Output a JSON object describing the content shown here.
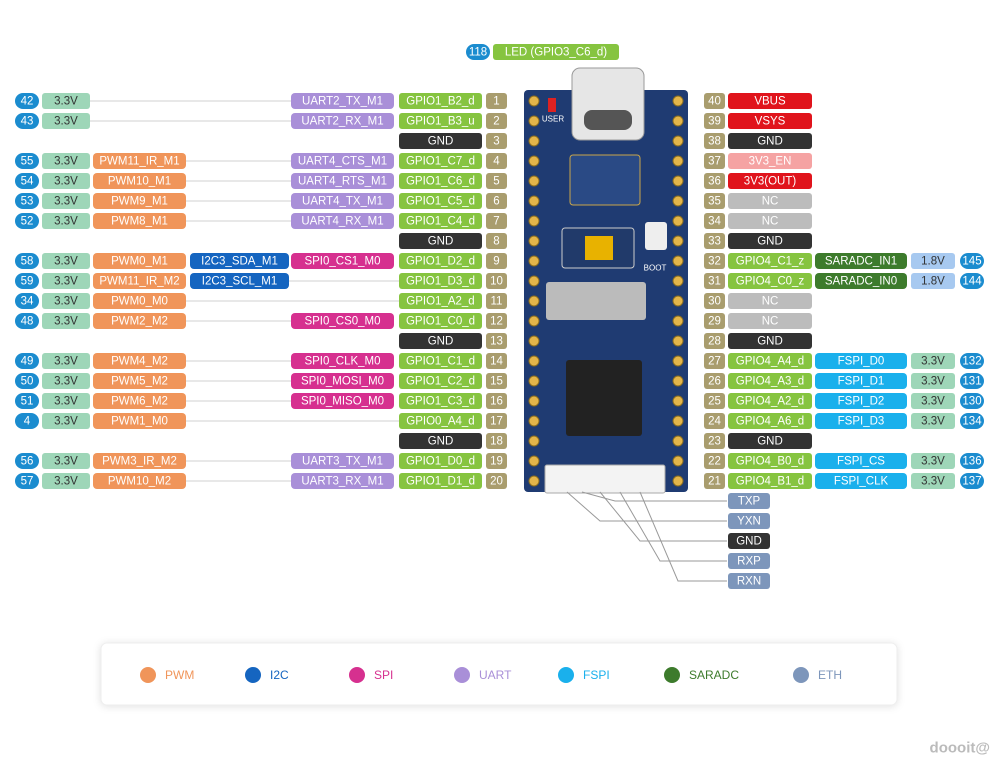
{
  "led": [
    {
      "text": 118,
      "color": "#1b8ccf"
    },
    {
      "text": "LED (GPIO3_C6_d)",
      "color": "#86c440"
    }
  ],
  "board": {
    "user": "USER",
    "boot": "BOOT"
  },
  "left_rows": [
    [
      {
        "text": 42,
        "color": "#1b8ccf"
      },
      {
        "text": "3.3V",
        "color": "#9ed6b8"
      },
      null,
      null,
      {
        "text": "UART2_TX_M1",
        "color": "#a98fd8"
      },
      {
        "text": "GPIO1_B2_d",
        "color": "#86c440"
      },
      {
        "text": 1,
        "color": "#a99d6e"
      }
    ],
    [
      {
        "text": 43,
        "color": "#1b8ccf"
      },
      {
        "text": "3.3V",
        "color": "#9ed6b8"
      },
      null,
      null,
      {
        "text": "UART2_RX_M1",
        "color": "#a98fd8"
      },
      {
        "text": "GPIO1_B3_u",
        "color": "#86c440"
      },
      {
        "text": 2,
        "color": "#a99d6e"
      }
    ],
    [
      null,
      null,
      null,
      null,
      null,
      {
        "text": "GND",
        "color": "#333333"
      },
      {
        "text": 3,
        "color": "#a99d6e"
      }
    ],
    [
      {
        "text": 55,
        "color": "#1b8ccf"
      },
      {
        "text": "3.3V",
        "color": "#9ed6b8"
      },
      {
        "text": "PWM11_IR_M1",
        "color": "#f0955a"
      },
      null,
      {
        "text": "UART4_CTS_M1",
        "color": "#a98fd8"
      },
      {
        "text": "GPIO1_C7_d",
        "color": "#86c440"
      },
      {
        "text": 4,
        "color": "#a99d6e"
      }
    ],
    [
      {
        "text": 54,
        "color": "#1b8ccf"
      },
      {
        "text": "3.3V",
        "color": "#9ed6b8"
      },
      {
        "text": "PWM10_M1",
        "color": "#f0955a"
      },
      null,
      {
        "text": "UART4_RTS_M1",
        "color": "#a98fd8"
      },
      {
        "text": "GPIO1_C6_d",
        "color": "#86c440"
      },
      {
        "text": 5,
        "color": "#a99d6e"
      }
    ],
    [
      {
        "text": 53,
        "color": "#1b8ccf"
      },
      {
        "text": "3.3V",
        "color": "#9ed6b8"
      },
      {
        "text": "PWM9_M1",
        "color": "#f0955a"
      },
      null,
      {
        "text": "UART4_TX_M1",
        "color": "#a98fd8"
      },
      {
        "text": "GPIO1_C5_d",
        "color": "#86c440"
      },
      {
        "text": 6,
        "color": "#a99d6e"
      }
    ],
    [
      {
        "text": 52,
        "color": "#1b8ccf"
      },
      {
        "text": "3.3V",
        "color": "#9ed6b8"
      },
      {
        "text": "PWM8_M1",
        "color": "#f0955a"
      },
      null,
      {
        "text": "UART4_RX_M1",
        "color": "#a98fd8"
      },
      {
        "text": "GPIO1_C4_d",
        "color": "#86c440"
      },
      {
        "text": 7,
        "color": "#a99d6e"
      }
    ],
    [
      null,
      null,
      null,
      null,
      null,
      {
        "text": "GND",
        "color": "#333333"
      },
      {
        "text": 8,
        "color": "#a99d6e"
      }
    ],
    [
      {
        "text": 58,
        "color": "#1b8ccf"
      },
      {
        "text": "3.3V",
        "color": "#9ed6b8"
      },
      {
        "text": "PWM0_M1",
        "color": "#f0955a"
      },
      {
        "text": "I2C3_SDA_M1",
        "color": "#1565c0"
      },
      {
        "text": "SPI0_CS1_M0",
        "color": "#d6308f"
      },
      {
        "text": "GPIO1_D2_d",
        "color": "#86c440"
      },
      {
        "text": 9,
        "color": "#a99d6e"
      }
    ],
    [
      {
        "text": 59,
        "color": "#1b8ccf"
      },
      {
        "text": "3.3V",
        "color": "#9ed6b8"
      },
      {
        "text": "PWM11_IR_M2",
        "color": "#f0955a"
      },
      {
        "text": "I2C3_SCL_M1",
        "color": "#1565c0"
      },
      null,
      {
        "text": "GPIO1_D3_d",
        "color": "#86c440"
      },
      {
        "text": 10,
        "color": "#a99d6e"
      }
    ],
    [
      {
        "text": 34,
        "color": "#1b8ccf"
      },
      {
        "text": "3.3V",
        "color": "#9ed6b8"
      },
      {
        "text": "PWM0_M0",
        "color": "#f0955a"
      },
      null,
      null,
      {
        "text": "GPIO1_A2_d",
        "color": "#86c440"
      },
      {
        "text": 11,
        "color": "#a99d6e"
      }
    ],
    [
      {
        "text": 48,
        "color": "#1b8ccf"
      },
      {
        "text": "3.3V",
        "color": "#9ed6b8"
      },
      {
        "text": "PWM2_M2",
        "color": "#f0955a"
      },
      null,
      {
        "text": "SPI0_CS0_M0",
        "color": "#d6308f"
      },
      {
        "text": "GPIO1_C0_d",
        "color": "#86c440"
      },
      {
        "text": 12,
        "color": "#a99d6e"
      }
    ],
    [
      null,
      null,
      null,
      null,
      null,
      {
        "text": "GND",
        "color": "#333333"
      },
      {
        "text": 13,
        "color": "#a99d6e"
      }
    ],
    [
      {
        "text": 49,
        "color": "#1b8ccf"
      },
      {
        "text": "3.3V",
        "color": "#9ed6b8"
      },
      {
        "text": "PWM4_M2",
        "color": "#f0955a"
      },
      null,
      {
        "text": "SPI0_CLK_M0",
        "color": "#d6308f"
      },
      {
        "text": "GPIO1_C1_d",
        "color": "#86c440"
      },
      {
        "text": 14,
        "color": "#a99d6e"
      }
    ],
    [
      {
        "text": 50,
        "color": "#1b8ccf"
      },
      {
        "text": "3.3V",
        "color": "#9ed6b8"
      },
      {
        "text": "PWM5_M2",
        "color": "#f0955a"
      },
      null,
      {
        "text": "SPI0_MOSI_M0",
        "color": "#d6308f"
      },
      {
        "text": "GPIO1_C2_d",
        "color": "#86c440"
      },
      {
        "text": 15,
        "color": "#a99d6e"
      }
    ],
    [
      {
        "text": 51,
        "color": "#1b8ccf"
      },
      {
        "text": "3.3V",
        "color": "#9ed6b8"
      },
      {
        "text": "PWM6_M2",
        "color": "#f0955a"
      },
      null,
      {
        "text": "SPI0_MISO_M0",
        "color": "#d6308f"
      },
      {
        "text": "GPIO1_C3_d",
        "color": "#86c440"
      },
      {
        "text": 16,
        "color": "#a99d6e"
      }
    ],
    [
      {
        "text": 4,
        "color": "#1b8ccf"
      },
      {
        "text": "3.3V",
        "color": "#9ed6b8"
      },
      {
        "text": "PWM1_M0",
        "color": "#f0955a"
      },
      null,
      null,
      {
        "text": "GPIO0_A4_d",
        "color": "#86c440"
      },
      {
        "text": 17,
        "color": "#a99d6e"
      }
    ],
    [
      null,
      null,
      null,
      null,
      null,
      {
        "text": "GND",
        "color": "#333333"
      },
      {
        "text": 18,
        "color": "#a99d6e"
      }
    ],
    [
      {
        "text": 56,
        "color": "#1b8ccf"
      },
      {
        "text": "3.3V",
        "color": "#9ed6b8"
      },
      {
        "text": "PWM3_IR_M2",
        "color": "#f0955a"
      },
      null,
      {
        "text": "UART3_TX_M1",
        "color": "#a98fd8"
      },
      {
        "text": "GPIO1_D0_d",
        "color": "#86c440"
      },
      {
        "text": 19,
        "color": "#a99d6e"
      }
    ],
    [
      {
        "text": 57,
        "color": "#1b8ccf"
      },
      {
        "text": "3.3V",
        "color": "#9ed6b8"
      },
      {
        "text": "PWM10_M2",
        "color": "#f0955a"
      },
      null,
      {
        "text": "UART3_RX_M1",
        "color": "#a98fd8"
      },
      {
        "text": "GPIO1_D1_d",
        "color": "#86c440"
      },
      {
        "text": 20,
        "color": "#a99d6e"
      }
    ]
  ],
  "right_rows": [
    [
      {
        "text": 40,
        "color": "#a99d6e"
      },
      {
        "text": "VBUS",
        "color": "#e0141c"
      },
      null,
      null,
      null
    ],
    [
      {
        "text": 39,
        "color": "#a99d6e"
      },
      {
        "text": "VSYS",
        "color": "#e0141c"
      },
      null,
      null,
      null
    ],
    [
      {
        "text": 38,
        "color": "#a99d6e"
      },
      {
        "text": "GND",
        "color": "#333333"
      },
      null,
      null,
      null
    ],
    [
      {
        "text": 37,
        "color": "#a99d6e"
      },
      {
        "text": "3V3_EN",
        "color": "#f5a3a3"
      },
      null,
      null,
      null
    ],
    [
      {
        "text": 36,
        "color": "#a99d6e"
      },
      {
        "text": "3V3(OUT)",
        "color": "#e0141c"
      },
      null,
      null,
      null
    ],
    [
      {
        "text": 35,
        "color": "#a99d6e"
      },
      {
        "text": "NC",
        "color": "#bcbcbc"
      },
      null,
      null,
      null
    ],
    [
      {
        "text": 34,
        "color": "#a99d6e"
      },
      {
        "text": "NC",
        "color": "#bcbcbc"
      },
      null,
      null,
      null
    ],
    [
      {
        "text": 33,
        "color": "#a99d6e"
      },
      {
        "text": "GND",
        "color": "#333333"
      },
      null,
      null,
      null
    ],
    [
      {
        "text": 32,
        "color": "#a99d6e"
      },
      {
        "text": "GPIO4_C1_z",
        "color": "#86c440"
      },
      {
        "text": "SARADC_IN1",
        "color": "#3d7b2c"
      },
      {
        "text": "1.8V",
        "color": "#a7c9f0"
      },
      {
        "text": 145,
        "color": "#1b8ccf"
      }
    ],
    [
      {
        "text": 31,
        "color": "#a99d6e"
      },
      {
        "text": "GPIO4_C0_z",
        "color": "#86c440"
      },
      {
        "text": "SARADC_IN0",
        "color": "#3d7b2c"
      },
      {
        "text": "1.8V",
        "color": "#a7c9f0"
      },
      {
        "text": 144,
        "color": "#1b8ccf"
      }
    ],
    [
      {
        "text": 30,
        "color": "#a99d6e"
      },
      {
        "text": "NC",
        "color": "#bcbcbc"
      },
      null,
      null,
      null
    ],
    [
      {
        "text": 29,
        "color": "#a99d6e"
      },
      {
        "text": "NC",
        "color": "#bcbcbc"
      },
      null,
      null,
      null
    ],
    [
      {
        "text": 28,
        "color": "#a99d6e"
      },
      {
        "text": "GND",
        "color": "#333333"
      },
      null,
      null,
      null
    ],
    [
      {
        "text": 27,
        "color": "#a99d6e"
      },
      {
        "text": "GPIO4_A4_d",
        "color": "#86c440"
      },
      {
        "text": "FSPI_D0",
        "color": "#1ab0ec"
      },
      {
        "text": "3.3V",
        "color": "#9ed6b8"
      },
      {
        "text": 132,
        "color": "#1b8ccf"
      }
    ],
    [
      {
        "text": 26,
        "color": "#a99d6e"
      },
      {
        "text": "GPIO4_A3_d",
        "color": "#86c440"
      },
      {
        "text": "FSPI_D1",
        "color": "#1ab0ec"
      },
      {
        "text": "3.3V",
        "color": "#9ed6b8"
      },
      {
        "text": 131,
        "color": "#1b8ccf"
      }
    ],
    [
      {
        "text": 25,
        "color": "#a99d6e"
      },
      {
        "text": "GPIO4_A2_d",
        "color": "#86c440"
      },
      {
        "text": "FSPI_D2",
        "color": "#1ab0ec"
      },
      {
        "text": "3.3V",
        "color": "#9ed6b8"
      },
      {
        "text": 130,
        "color": "#1b8ccf"
      }
    ],
    [
      {
        "text": 24,
        "color": "#a99d6e"
      },
      {
        "text": "GPIO4_A6_d",
        "color": "#86c440"
      },
      {
        "text": "FSPI_D3",
        "color": "#1ab0ec"
      },
      {
        "text": "3.3V",
        "color": "#9ed6b8"
      },
      {
        "text": 134,
        "color": "#1b8ccf"
      }
    ],
    [
      {
        "text": 23,
        "color": "#a99d6e"
      },
      {
        "text": "GND",
        "color": "#333333"
      },
      null,
      null,
      null
    ],
    [
      {
        "text": 22,
        "color": "#a99d6e"
      },
      {
        "text": "GPIO4_B0_d",
        "color": "#86c440"
      },
      {
        "text": "FSPI_CS",
        "color": "#1ab0ec"
      },
      {
        "text": "3.3V",
        "color": "#9ed6b8"
      },
      {
        "text": 136,
        "color": "#1b8ccf"
      }
    ],
    [
      {
        "text": 21,
        "color": "#a99d6e"
      },
      {
        "text": "GPIO4_B1_d",
        "color": "#86c440"
      },
      {
        "text": "FSPI_CLK",
        "color": "#1ab0ec"
      },
      {
        "text": "3.3V",
        "color": "#9ed6b8"
      },
      {
        "text": 137,
        "color": "#1b8ccf"
      }
    ]
  ],
  "eth": [
    {
      "text": "TXP",
      "color": "#7d96bb"
    },
    {
      "text": "YXN",
      "color": "#7d96bb"
    },
    {
      "text": "GND",
      "color": "#333333"
    },
    {
      "text": "RXP",
      "color": "#7d96bb"
    },
    {
      "text": "RXN",
      "color": "#7d96bb"
    }
  ],
  "legend": [
    {
      "name": "PWM",
      "color": "#f0955a"
    },
    {
      "name": "I2C",
      "color": "#1565c0"
    },
    {
      "name": "SPI",
      "color": "#d6308f"
    },
    {
      "name": "UART",
      "color": "#a98fd8"
    },
    {
      "name": "FSPI",
      "color": "#1ab0ec"
    },
    {
      "name": "SARADC",
      "color": "#3d7b2c"
    },
    {
      "name": "ETH",
      "color": "#7d96bb"
    }
  ],
  "watermark": "doooit@"
}
